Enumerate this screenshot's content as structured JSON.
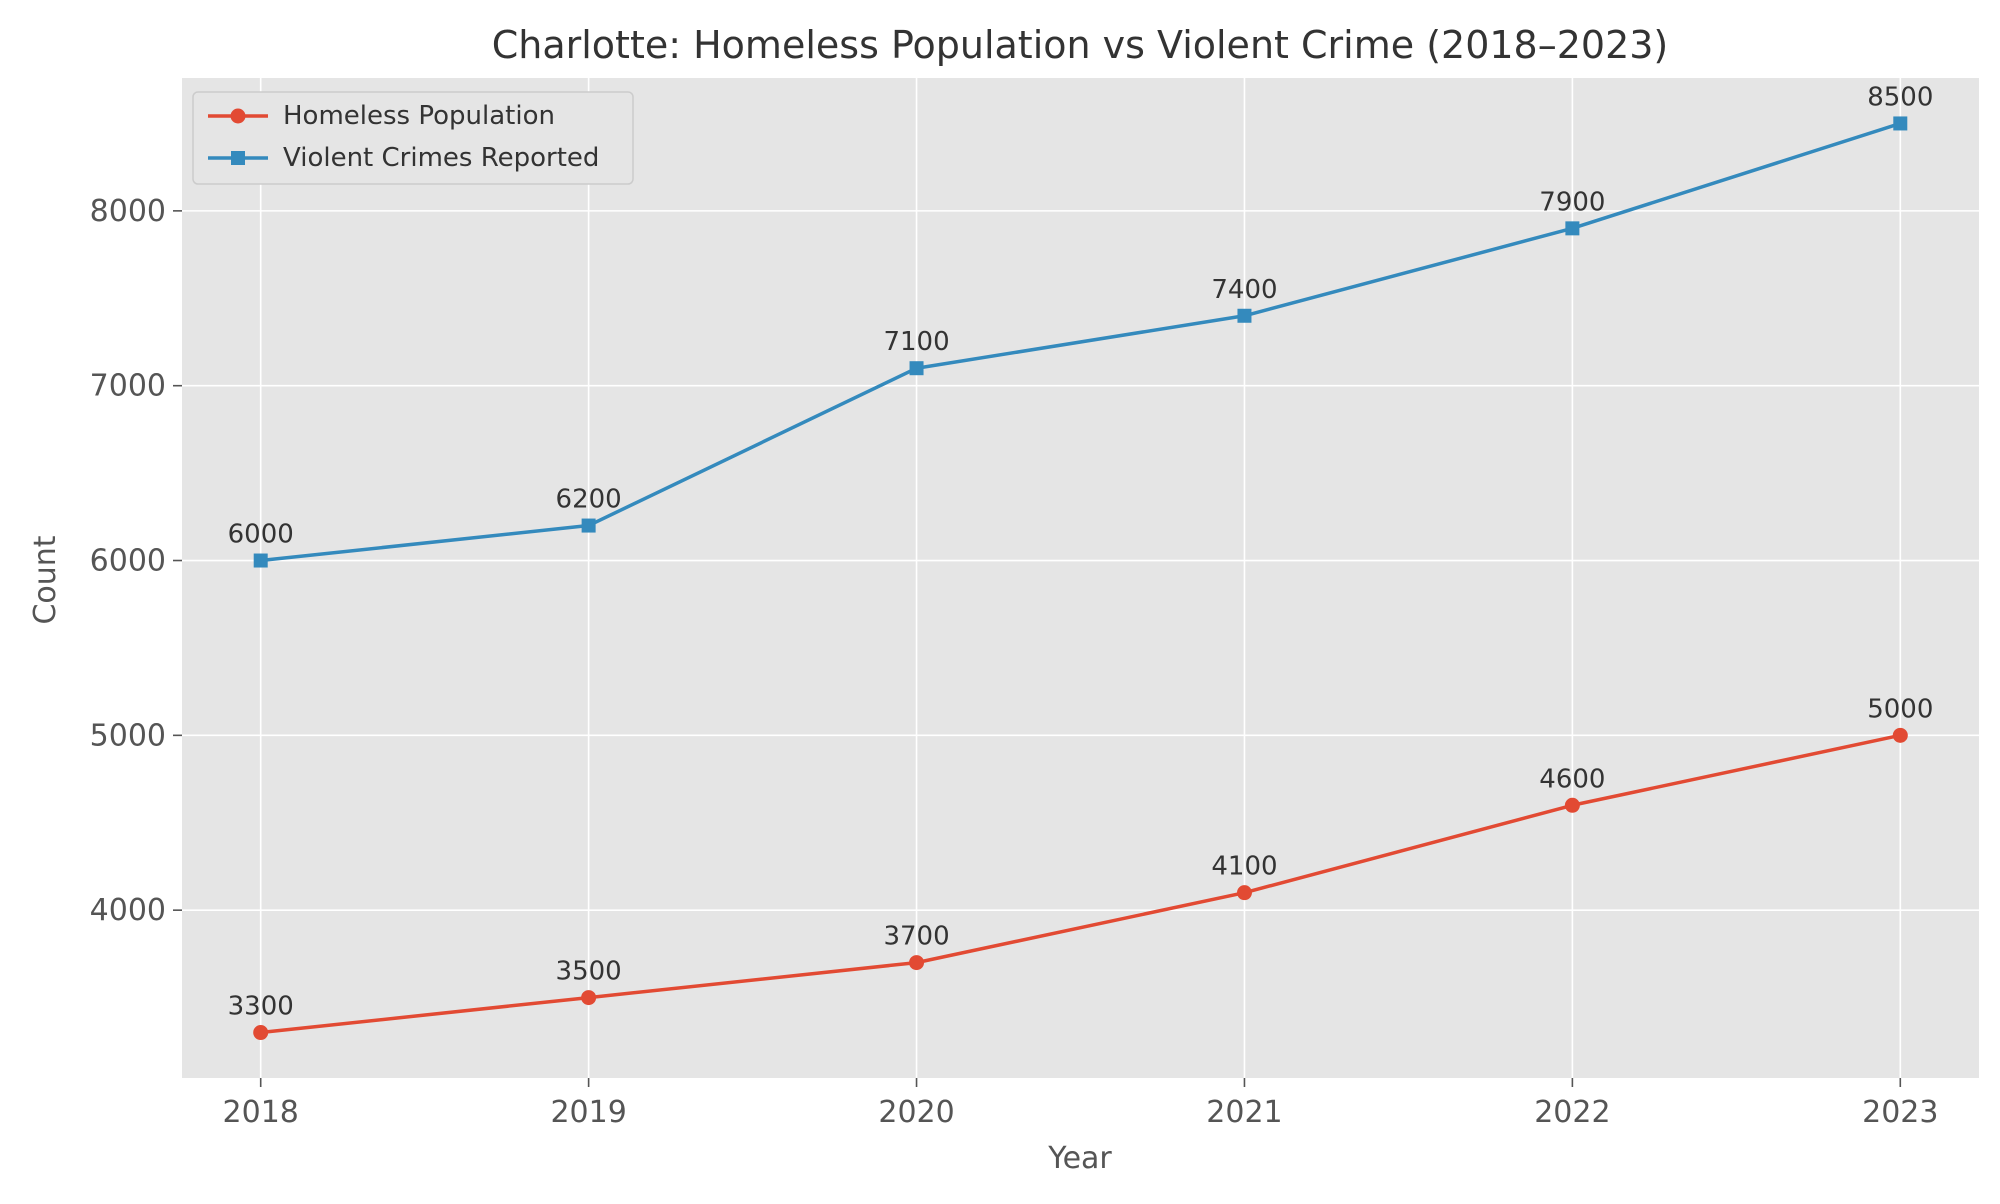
{
  "chart_data": {
    "type": "line",
    "title": "Charlotte: Homeless Population vs Violent Crime (2018–2023)",
    "xlabel": "Year",
    "ylabel": "Count",
    "x": [
      2018,
      2019,
      2020,
      2021,
      2022,
      2023
    ],
    "x_tick_labels": [
      "2018",
      "2019",
      "2020",
      "2021",
      "2022",
      "2023"
    ],
    "xlim": [
      2017.76,
      2023.24
    ],
    "ylim": [
      3040,
      8760
    ],
    "y_ticks": [
      4000,
      5000,
      6000,
      7000,
      8000
    ],
    "y_tick_labels": [
      "4000",
      "5000",
      "6000",
      "7000",
      "8000"
    ],
    "grid": true,
    "legend_position": "upper-left",
    "series": [
      {
        "name": "Homeless Population",
        "marker": "circle",
        "color": "#E24A33",
        "values": [
          3300,
          3500,
          3700,
          4100,
          4600,
          5000
        ],
        "labels": [
          "3300",
          "3500",
          "3700",
          "4100",
          "4600",
          "5000"
        ]
      },
      {
        "name": "Violent Crimes Reported",
        "marker": "square",
        "color": "#348ABD",
        "values": [
          6000,
          6200,
          7100,
          7400,
          7900,
          8500
        ],
        "labels": [
          "6000",
          "6200",
          "7100",
          "7400",
          "7900",
          "8500"
        ]
      }
    ]
  },
  "colors": {
    "plot_background": "#E5E5E5",
    "grid": "#FFFFFF",
    "text": "#333333",
    "tick_text": "#555555"
  }
}
